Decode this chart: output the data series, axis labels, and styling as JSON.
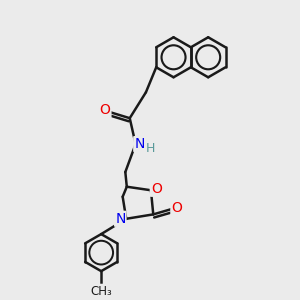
{
  "background_color": "#ebebeb",
  "bond_color": "#1a1a1a",
  "bond_width": 1.8,
  "atom_colors": {
    "N": "#0000ee",
    "O": "#ee0000",
    "H": "#5a9a9a",
    "C": "#1a1a1a"
  },
  "figsize": [
    3.0,
    3.0
  ],
  "dpi": 100,
  "xlim": [
    0,
    10
  ],
  "ylim": [
    0,
    10
  ]
}
